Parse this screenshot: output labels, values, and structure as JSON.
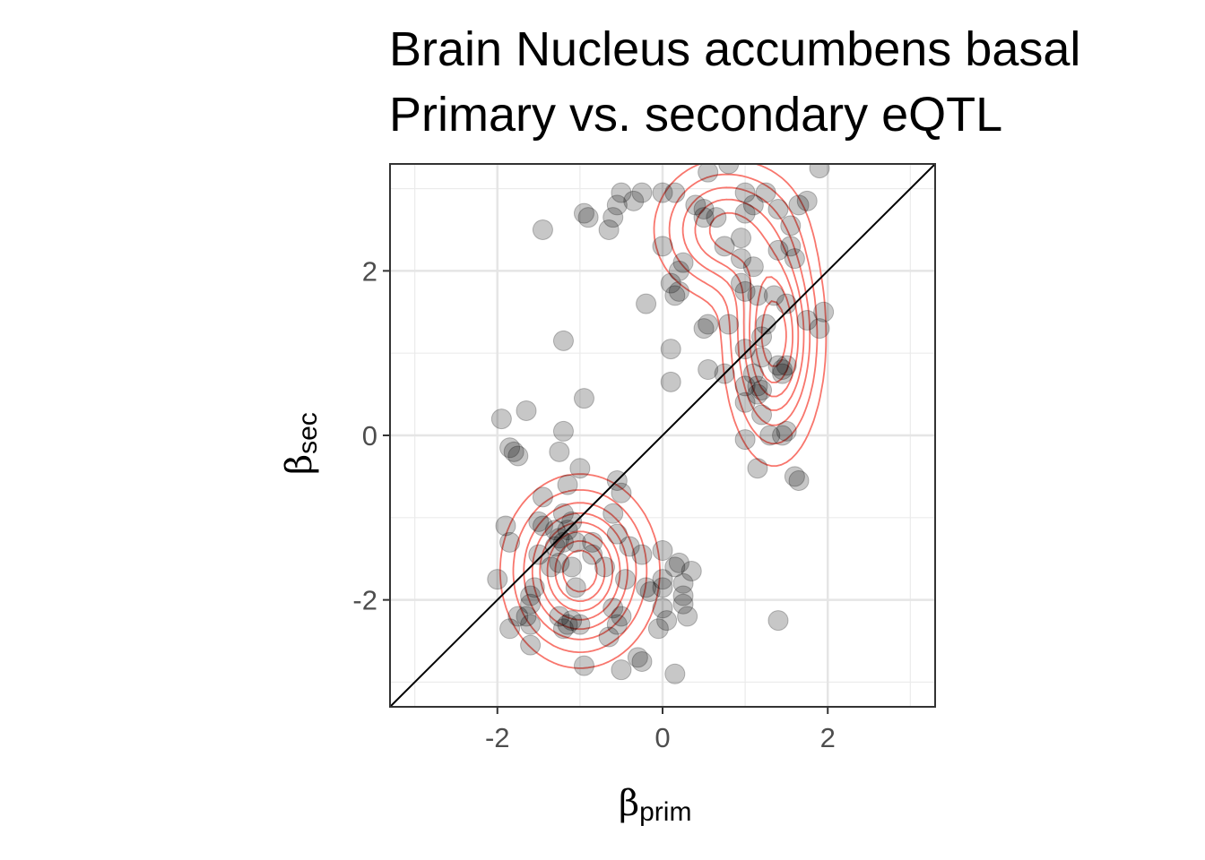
{
  "chart_data": {
    "type": "scatter",
    "title_lines": [
      "Brain Nucleus accumbens basal",
      "Primary vs. secondary eQTL"
    ],
    "xlabel": {
      "symbol": "β",
      "subscript": "prim"
    },
    "ylabel": {
      "symbol": "β",
      "subscript": "sec"
    },
    "xlim": [
      -3.3,
      3.3
    ],
    "ylim": [
      -3.3,
      3.3
    ],
    "x_ticks": [
      -2,
      0,
      2
    ],
    "y_ticks": [
      -2,
      0,
      2
    ],
    "x_tick_labels": [
      "-2",
      "0",
      "2"
    ],
    "y_tick_labels": [
      "-2",
      "0",
      "2"
    ],
    "grid": true,
    "reference_line": {
      "slope": 1,
      "intercept": 0
    },
    "colors": {
      "points": "#000000",
      "contours": "#f8766d",
      "reference_line": "#000000"
    },
    "density_clusters": [
      {
        "center": [
          -1.0,
          -1.65
        ],
        "sd": [
          0.45,
          0.55
        ],
        "weight": 1.0
      },
      {
        "center": [
          1.35,
          1.2
        ],
        "sd": [
          0.3,
          0.75
        ],
        "weight": 0.9
      },
      {
        "center": [
          0.75,
          2.5
        ],
        "sd": [
          0.45,
          0.45
        ],
        "weight": 0.6
      }
    ],
    "points": [
      [
        -0.25,
        2.95
      ],
      [
        0.15,
        2.95
      ],
      [
        0.8,
        3.3
      ],
      [
        1.0,
        2.95
      ],
      [
        1.25,
        2.95
      ],
      [
        0.55,
        3.2
      ],
      [
        1.9,
        3.25
      ],
      [
        -0.5,
        2.95
      ],
      [
        -0.35,
        2.85
      ],
      [
        -0.55,
        2.8
      ],
      [
        -0.6,
        2.65
      ],
      [
        0.0,
        2.95
      ],
      [
        0.4,
        2.8
      ],
      [
        0.5,
        2.75
      ],
      [
        0.65,
        2.65
      ],
      [
        1.0,
        2.7
      ],
      [
        1.1,
        2.8
      ],
      [
        1.4,
        2.75
      ],
      [
        1.65,
        2.8
      ],
      [
        1.75,
        2.85
      ],
      [
        -0.95,
        2.7
      ],
      [
        -0.9,
        2.65
      ],
      [
        -1.45,
        2.5
      ],
      [
        -0.65,
        2.5
      ],
      [
        0.5,
        2.65
      ],
      [
        1.55,
        2.55
      ],
      [
        0.0,
        2.3
      ],
      [
        0.75,
        2.3
      ],
      [
        0.95,
        2.4
      ],
      [
        1.4,
        2.25
      ],
      [
        1.55,
        2.3
      ],
      [
        1.6,
        2.15
      ],
      [
        0.25,
        2.1
      ],
      [
        0.2,
        2.0
      ],
      [
        0.95,
        2.15
      ],
      [
        1.1,
        2.05
      ],
      [
        0.1,
        1.85
      ],
      [
        0.2,
        1.75
      ],
      [
        0.15,
        1.7
      ],
      [
        0.95,
        1.85
      ],
      [
        1.0,
        1.75
      ],
      [
        1.15,
        1.7
      ],
      [
        1.35,
        1.7
      ],
      [
        1.5,
        1.6
      ],
      [
        -0.2,
        1.6
      ],
      [
        0.55,
        1.35
      ],
      [
        0.5,
        1.3
      ],
      [
        0.8,
        1.35
      ],
      [
        1.25,
        1.35
      ],
      [
        1.2,
        1.2
      ],
      [
        1.75,
        1.4
      ],
      [
        1.95,
        1.5
      ],
      [
        1.9,
        1.3
      ],
      [
        -1.2,
        1.15
      ],
      [
        0.1,
        1.05
      ],
      [
        1.0,
        1.05
      ],
      [
        1.2,
        0.95
      ],
      [
        1.4,
        0.85
      ],
      [
        1.45,
        0.8
      ],
      [
        1.5,
        0.85
      ],
      [
        1.45,
        0.75
      ],
      [
        0.55,
        0.8
      ],
      [
        0.75,
        0.75
      ],
      [
        1.1,
        0.75
      ],
      [
        1.0,
        0.6
      ],
      [
        0.1,
        0.65
      ],
      [
        1.15,
        0.6
      ],
      [
        1.2,
        0.55
      ],
      [
        1.15,
        0.5
      ],
      [
        -0.95,
        0.45
      ],
      [
        1.0,
        0.4
      ],
      [
        1.2,
        0.25
      ],
      [
        -1.95,
        0.2
      ],
      [
        -1.65,
        0.3
      ],
      [
        1.5,
        0.05
      ],
      [
        1.45,
        0.0
      ],
      [
        1.3,
        0.0
      ],
      [
        1.0,
        -0.05
      ],
      [
        -1.2,
        0.05
      ],
      [
        -1.85,
        -0.15
      ],
      [
        -1.8,
        -0.2
      ],
      [
        -1.75,
        -0.25
      ],
      [
        -1.25,
        -0.2
      ],
      [
        -1.0,
        -0.4
      ],
      [
        1.15,
        -0.4
      ],
      [
        -0.55,
        -0.55
      ],
      [
        1.6,
        -0.5
      ],
      [
        1.65,
        -0.55
      ],
      [
        -0.5,
        -0.7
      ],
      [
        -1.45,
        -0.75
      ],
      [
        -1.15,
        -0.6
      ],
      [
        -0.6,
        -0.95
      ],
      [
        -1.2,
        -0.95
      ],
      [
        -1.1,
        -1.05
      ],
      [
        -1.3,
        -1.15
      ],
      [
        -1.45,
        -1.1
      ],
      [
        -1.5,
        -1.05
      ],
      [
        -1.15,
        -1.15
      ],
      [
        -1.05,
        -1.3
      ],
      [
        -0.85,
        -1.3
      ],
      [
        -1.25,
        -1.25
      ],
      [
        -1.3,
        -1.35
      ],
      [
        -1.5,
        -1.45
      ],
      [
        -1.35,
        -1.6
      ],
      [
        -1.25,
        -1.55
      ],
      [
        -1.1,
        -1.6
      ],
      [
        -0.85,
        -1.45
      ],
      [
        -1.2,
        -1.3
      ],
      [
        -1.9,
        -1.1
      ],
      [
        -1.85,
        -1.3
      ],
      [
        -0.55,
        -1.2
      ],
      [
        -0.4,
        -1.35
      ],
      [
        -0.25,
        -1.45
      ],
      [
        0.0,
        -1.4
      ],
      [
        0.2,
        -1.55
      ],
      [
        0.15,
        -1.6
      ],
      [
        0.35,
        -1.65
      ],
      [
        -0.45,
        -1.75
      ],
      [
        0.0,
        -1.75
      ],
      [
        -2.0,
        -1.75
      ],
      [
        -1.55,
        -1.85
      ],
      [
        -1.05,
        -1.85
      ],
      [
        -0.7,
        -1.6
      ],
      [
        0.0,
        -1.85
      ],
      [
        0.25,
        -1.8
      ],
      [
        0.25,
        -1.95
      ],
      [
        -0.2,
        -1.85
      ],
      [
        -0.15,
        -1.9
      ],
      [
        -1.6,
        -1.95
      ],
      [
        -1.6,
        -2.05
      ],
      [
        -0.6,
        -2.1
      ],
      [
        0.0,
        -2.1
      ],
      [
        0.25,
        -2.05
      ],
      [
        0.3,
        -2.2
      ],
      [
        -1.75,
        -2.2
      ],
      [
        -1.65,
        -2.2
      ],
      [
        -1.6,
        -2.3
      ],
      [
        -1.25,
        -2.2
      ],
      [
        -1.1,
        -2.25
      ],
      [
        -1.15,
        -2.3
      ],
      [
        -1.2,
        -2.35
      ],
      [
        -1.0,
        -2.3
      ],
      [
        -0.5,
        -2.2
      ],
      [
        -0.55,
        -2.3
      ],
      [
        -0.05,
        -2.35
      ],
      [
        0.05,
        -2.25
      ],
      [
        1.4,
        -2.25
      ],
      [
        -1.85,
        -2.35
      ],
      [
        -1.6,
        -2.55
      ],
      [
        -0.65,
        -2.45
      ],
      [
        -0.3,
        -2.7
      ],
      [
        -0.25,
        -2.75
      ],
      [
        -0.95,
        -2.8
      ],
      [
        -0.5,
        -2.85
      ],
      [
        0.15,
        -2.9
      ]
    ]
  }
}
